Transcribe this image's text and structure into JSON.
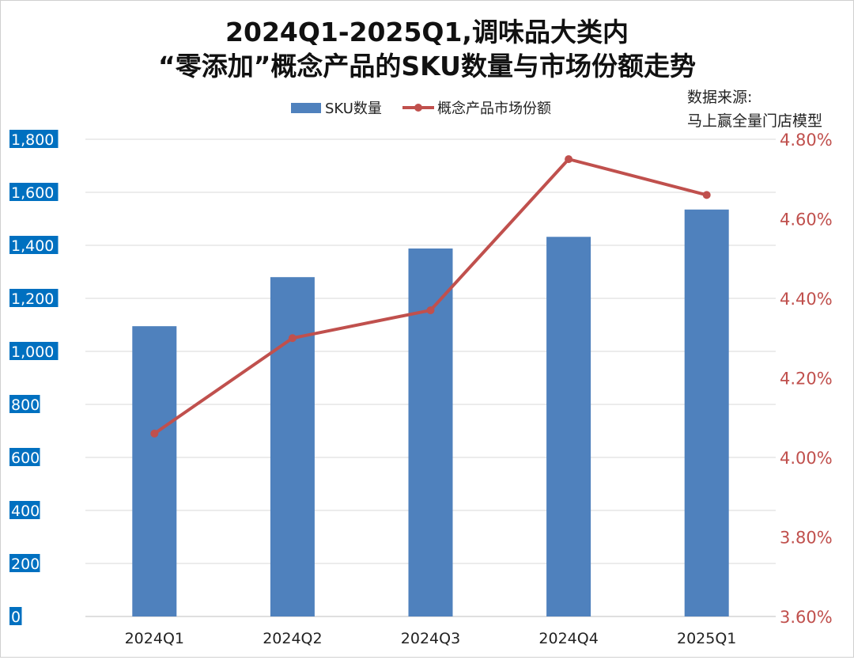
{
  "chart_data": {
    "type": "bar",
    "title": "2024Q1-2025Q1,调味品大类内",
    "subtitle": "“零添加”概念产品的SKU数量与市场份额走势",
    "source_lines": [
      "数据来源:",
      "马上赢全量门店模型"
    ],
    "categories": [
      "2024Q1",
      "2024Q2",
      "2024Q3",
      "2024Q4",
      "2025Q1"
    ],
    "series": [
      {
        "name": "SKU数量",
        "type": "bar",
        "axis": "left",
        "values": [
          1095,
          1280,
          1388,
          1432,
          1535
        ],
        "color": "#4f81bd"
      },
      {
        "name": "概念产品市场份额",
        "type": "line",
        "axis": "right",
        "values": [
          4.06,
          4.3,
          4.37,
          4.75,
          4.66
        ],
        "color": "#c0504d"
      }
    ],
    "y_left": {
      "lim": [
        0,
        1800
      ],
      "ticks": [
        0,
        200,
        400,
        600,
        800,
        1000,
        1200,
        1400,
        1600,
        1800
      ],
      "tick_labels": [
        "0",
        "200",
        "400",
        "600",
        "800",
        "1,000",
        "1,200",
        "1,400",
        "1,600",
        "1,800"
      ],
      "label_bg": "#0070c0"
    },
    "y_right": {
      "lim": [
        3.6,
        4.8
      ],
      "ticks": [
        3.6,
        3.8,
        4.0,
        4.2,
        4.4,
        4.6,
        4.8
      ],
      "tick_labels": [
        "3.60%",
        "3.80%",
        "4.00%",
        "4.20%",
        "4.40%",
        "4.60%",
        "4.80%"
      ],
      "color": "#c0504d"
    },
    "grid": true,
    "legend_position": "top-center"
  }
}
